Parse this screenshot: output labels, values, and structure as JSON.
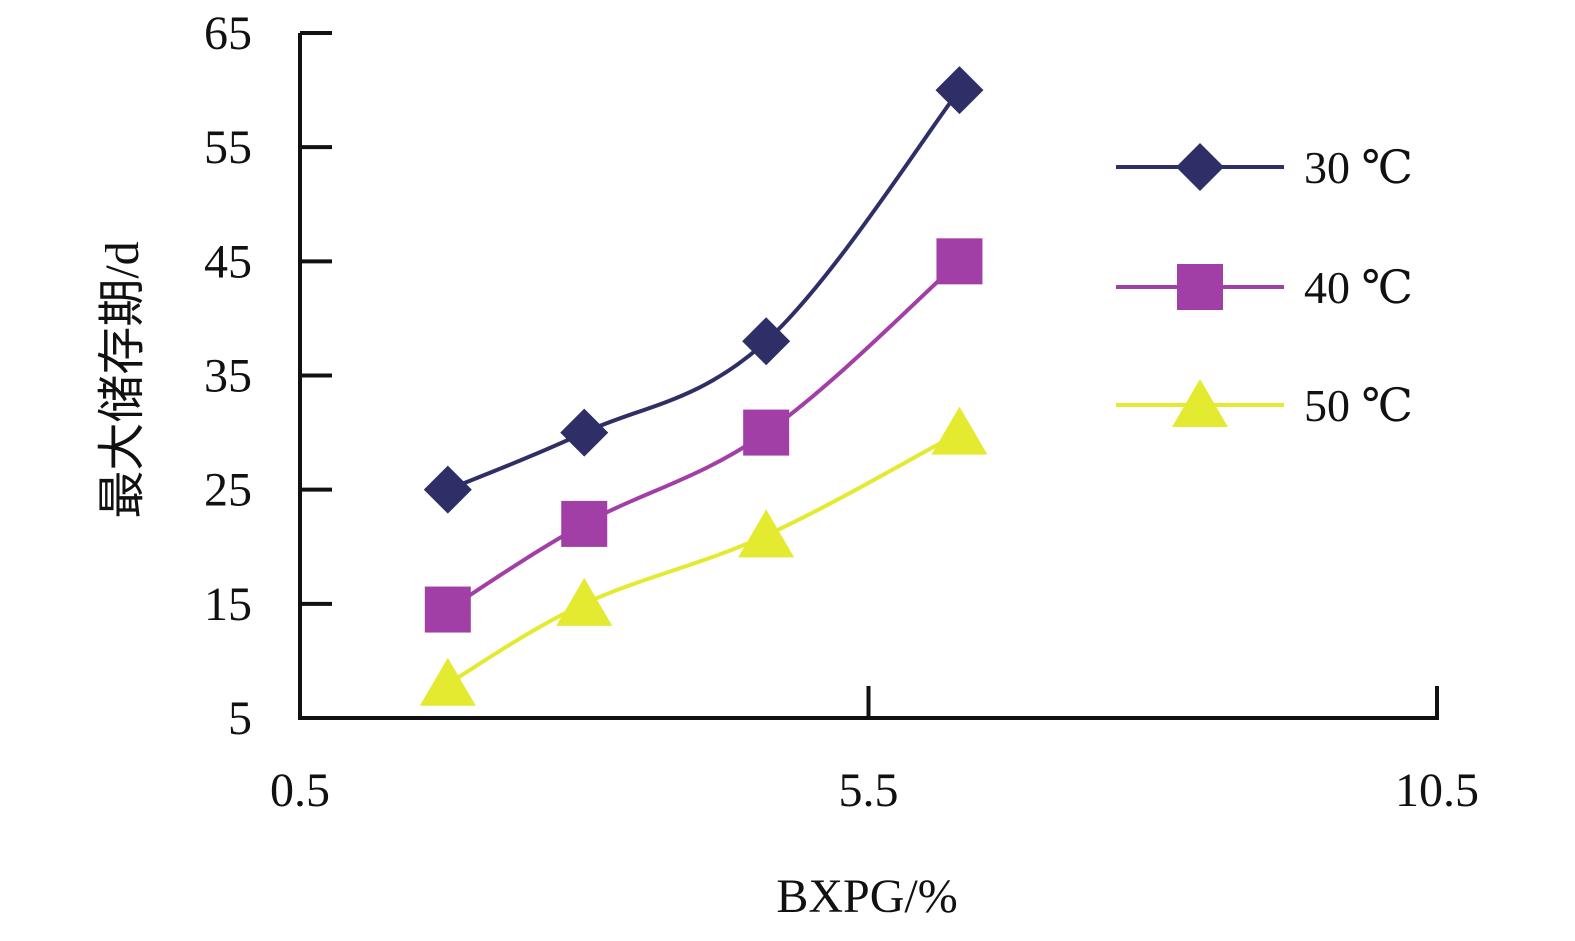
{
  "chart_data": {
    "type": "line",
    "title": "",
    "xlabel": "BXPG/%",
    "ylabel": "最大储存期/d",
    "xlim": [
      0.5,
      10.5
    ],
    "ylim": [
      5,
      65
    ],
    "xticks": [
      "0.5",
      "5.5",
      "10.5"
    ],
    "yticks": [
      "5",
      "15",
      "25",
      "35",
      "45",
      "55",
      "65"
    ],
    "grid": false,
    "legend_position": "right",
    "x": [
      1.8,
      3.0,
      4.6,
      6.3
    ],
    "series": [
      {
        "name": "30 ℃",
        "values": [
          25,
          30,
          38,
          60
        ],
        "color": "#2e2f66",
        "marker": "diamond"
      },
      {
        "name": "40 ℃",
        "values": [
          14.5,
          22,
          30,
          45
        ],
        "color": "#a23fa6",
        "marker": "square"
      },
      {
        "name": "50 ℃",
        "values": [
          8,
          15,
          21,
          30
        ],
        "color": "#e3ea30",
        "marker": "triangle"
      }
    ]
  }
}
